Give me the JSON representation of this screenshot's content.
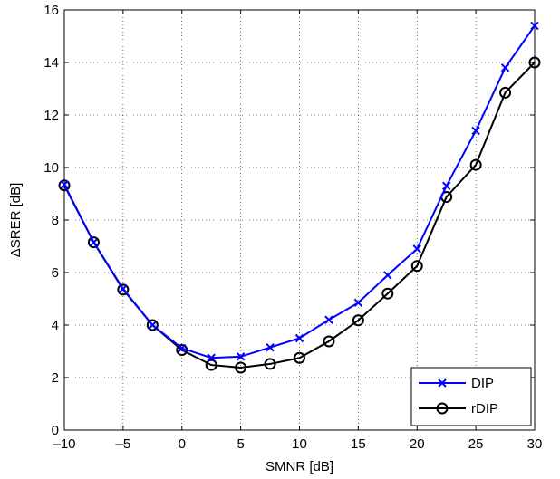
{
  "chart_data": {
    "type": "line",
    "xlabel": "SMNR [dB]",
    "ylabel": "ΔSRER [dB]",
    "xlim": [
      -10,
      30
    ],
    "ylim": [
      0,
      16
    ],
    "xticks": [
      -10,
      -5,
      0,
      5,
      10,
      15,
      20,
      25,
      30
    ],
    "yticks": [
      0,
      2,
      4,
      6,
      8,
      10,
      12,
      14,
      16
    ],
    "xtick_labels": [
      "–10",
      "–5",
      "0",
      "5",
      "10",
      "15",
      "20",
      "25",
      "30"
    ],
    "ytick_labels": [
      "0",
      "2",
      "4",
      "6",
      "8",
      "10",
      "12",
      "14",
      "16"
    ],
    "grid": true,
    "legend_position": "bottom-right",
    "x": [
      -10,
      -7.5,
      -5,
      -2.5,
      0,
      2.5,
      5,
      7.5,
      10,
      12.5,
      15,
      17.5,
      20,
      22.5,
      25,
      27.5,
      30
    ],
    "series": [
      {
        "name": "DIP",
        "color": "#0000ff",
        "marker": "x",
        "values": [
          9.35,
          7.15,
          5.38,
          4.0,
          3.12,
          2.75,
          2.8,
          3.15,
          3.5,
          4.2,
          4.85,
          5.9,
          6.9,
          9.3,
          11.4,
          13.8,
          15.4
        ]
      },
      {
        "name": "rDIP",
        "color": "#000000",
        "marker": "o",
        "values": [
          9.32,
          7.15,
          5.35,
          4.0,
          3.05,
          2.48,
          2.38,
          2.52,
          2.75,
          3.38,
          4.18,
          5.2,
          6.25,
          8.88,
          10.1,
          12.85,
          14.0
        ]
      }
    ]
  }
}
